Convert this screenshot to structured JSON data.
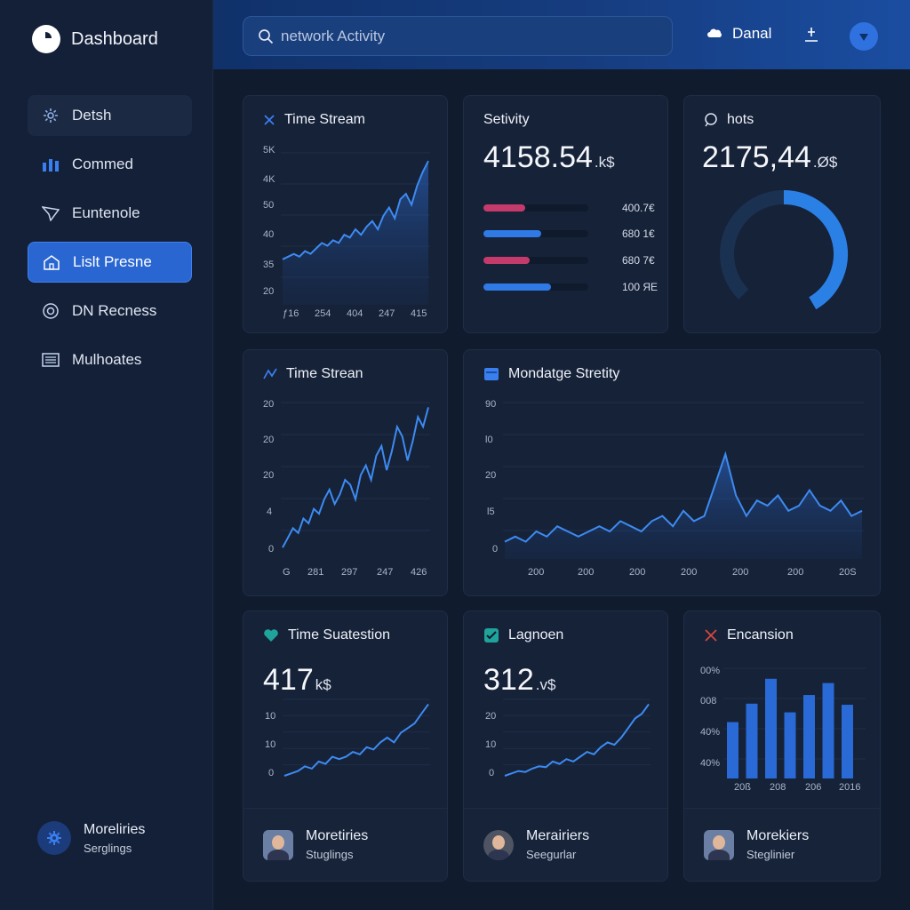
{
  "sidebar": {
    "brand": "Dashboard",
    "items": [
      {
        "label": "Detsh",
        "icon": "settings-gear-icon"
      },
      {
        "label": "Commed",
        "icon": "bar-chart-icon"
      },
      {
        "label": "Euntenole",
        "icon": "send-icon"
      },
      {
        "label": "Lislt Presne",
        "icon": "home-icon"
      },
      {
        "label": "DN Recness",
        "icon": "target-icon"
      },
      {
        "label": "Mulhoates",
        "icon": "inbox-icon"
      }
    ],
    "footer": {
      "name": "Moreliries",
      "sub": "Serglings"
    }
  },
  "topbar": {
    "search_placeholder": "network Activity",
    "user_name": "Danal"
  },
  "cards": {
    "stream1": {
      "title": "Time Stream",
      "y_ticks": [
        "5K",
        "4K",
        "50",
        "40",
        "35",
        "20"
      ],
      "x_ticks": [
        "ƒ16",
        "254",
        "404",
        "247",
        "415"
      ]
    },
    "activity": {
      "title": "Setivity",
      "value": "4158.54",
      "unit": ".k$",
      "bars": [
        {
          "fraction": 0.4,
          "color": "#c43b6b",
          "label": "400.7€"
        },
        {
          "fraction": 0.55,
          "color": "#2f7ae5",
          "label": "680 1€"
        },
        {
          "fraction": 0.44,
          "color": "#c43b6b",
          "label": "680 7€"
        },
        {
          "fraction": 0.64,
          "color": "#2f7ae5",
          "label": "100 ЯE"
        }
      ]
    },
    "hots": {
      "title": "hots",
      "value": "2175,44",
      "unit": ".Ø$",
      "gauge_fraction": 0.42
    },
    "stream2": {
      "title": "Time Strean",
      "y_ticks": [
        "20",
        "20",
        "20",
        "4",
        "0"
      ],
      "x_ticks": [
        "G",
        "281",
        "297",
        "247",
        "426"
      ]
    },
    "stretity": {
      "title": "Mondatge Stretity",
      "y_ticks": [
        "90",
        "l0",
        "20",
        "l5",
        "0"
      ],
      "x_ticks": [
        "200",
        "200",
        "200",
        "200",
        "200",
        "200",
        "20S"
      ]
    },
    "suatestion": {
      "title": "Time Suatestion",
      "value": "417",
      "unit": "k$",
      "y_ticks": [
        "10",
        "10",
        "0"
      ],
      "footer": {
        "name": "Moretiries",
        "sub": "Stuglings"
      }
    },
    "lagnoen": {
      "title": "Lagnoen",
      "value": "312",
      "unit": ".v$",
      "y_ticks": [
        "20",
        "10",
        "0"
      ],
      "footer": {
        "name": "Merairiers",
        "sub": "Seegurlar"
      }
    },
    "encansion": {
      "title": "Encansion",
      "y_ticks": [
        "00%",
        "008",
        "40%",
        "40%"
      ],
      "x_ticks": [
        "20ß",
        "208",
        "206",
        "2016"
      ],
      "footer": {
        "name": "Morekiers",
        "sub": "Steglinier"
      }
    }
  },
  "chart_data": [
    {
      "type": "area",
      "title": "Time Stream",
      "x": [
        1,
        2,
        3,
        4,
        5,
        6,
        7,
        8,
        9,
        10,
        11,
        12,
        13,
        14,
        15,
        16,
        17,
        18,
        19,
        20,
        21,
        22,
        23,
        24,
        25,
        26,
        27
      ],
      "values": [
        36,
        37,
        38,
        37,
        39,
        38,
        40,
        42,
        41,
        43,
        42,
        45,
        44,
        47,
        45,
        48,
        50,
        47,
        52,
        55,
        51,
        58,
        60,
        56,
        63,
        68,
        72
      ],
      "ylim": [
        20,
        75
      ]
    },
    {
      "type": "line",
      "title": "Time Strean",
      "x": [
        1,
        2,
        3,
        4,
        5,
        6,
        7,
        8,
        9,
        10,
        11,
        12,
        13,
        14,
        15,
        16,
        17,
        18,
        19,
        20,
        21,
        22,
        23,
        24,
        25,
        26,
        27,
        28,
        29
      ],
      "values": [
        2,
        4,
        6,
        5,
        8,
        7,
        10,
        9,
        12,
        14,
        11,
        13,
        16,
        15,
        12,
        17,
        19,
        16,
        21,
        23,
        18,
        22,
        27,
        25,
        20,
        24,
        29,
        27,
        31
      ],
      "ylim": [
        0,
        32
      ]
    },
    {
      "type": "area",
      "title": "Mondatge Stretity",
      "x": [
        1,
        2,
        3,
        4,
        5,
        6,
        7,
        8,
        9,
        10,
        11,
        12,
        13,
        14,
        15,
        16,
        17,
        18,
        19,
        20,
        21,
        22,
        23,
        24,
        25,
        26,
        27,
        28,
        29,
        30,
        31,
        32,
        33,
        34,
        35
      ],
      "values": [
        3,
        4,
        3,
        5,
        4,
        6,
        5,
        4,
        5,
        6,
        5,
        7,
        6,
        5,
        7,
        8,
        6,
        9,
        7,
        8,
        14,
        20,
        12,
        8,
        11,
        10,
        12,
        9,
        10,
        13,
        10,
        9,
        11,
        8,
        9
      ],
      "ylim": [
        0,
        30
      ]
    },
    {
      "type": "line",
      "title": "Time Suatestion",
      "x": [
        1,
        2,
        3,
        4,
        5,
        6,
        7,
        8,
        9,
        10,
        11,
        12,
        13,
        14,
        15,
        16,
        17,
        18,
        19,
        20,
        21,
        22
      ],
      "values": [
        0,
        0.5,
        1,
        2,
        1.5,
        3,
        2.5,
        4,
        3.5,
        4,
        5,
        4.5,
        6,
        5.5,
        7,
        8,
        7,
        9,
        10,
        11,
        13,
        15
      ],
      "ylim": [
        0,
        16
      ]
    },
    {
      "type": "line",
      "title": "Lagnoen",
      "x": [
        1,
        2,
        3,
        4,
        5,
        6,
        7,
        8,
        9,
        10,
        11,
        12,
        13,
        14,
        15,
        16,
        17,
        18,
        19,
        20,
        21,
        22
      ],
      "values": [
        0,
        0.5,
        1,
        0.8,
        1.5,
        2,
        1.8,
        3,
        2.5,
        3.5,
        3,
        4,
        5,
        4.5,
        6,
        7,
        6.5,
        8,
        10,
        12,
        13,
        15
      ],
      "ylim": [
        0,
        16
      ]
    },
    {
      "type": "bar",
      "title": "Encansion",
      "categories": [
        "1",
        "2",
        "3",
        "4",
        "5",
        "6",
        "7"
      ],
      "values": [
        52,
        69,
        92,
        61,
        77,
        88,
        68
      ],
      "ylim": [
        0,
        100
      ]
    }
  ]
}
